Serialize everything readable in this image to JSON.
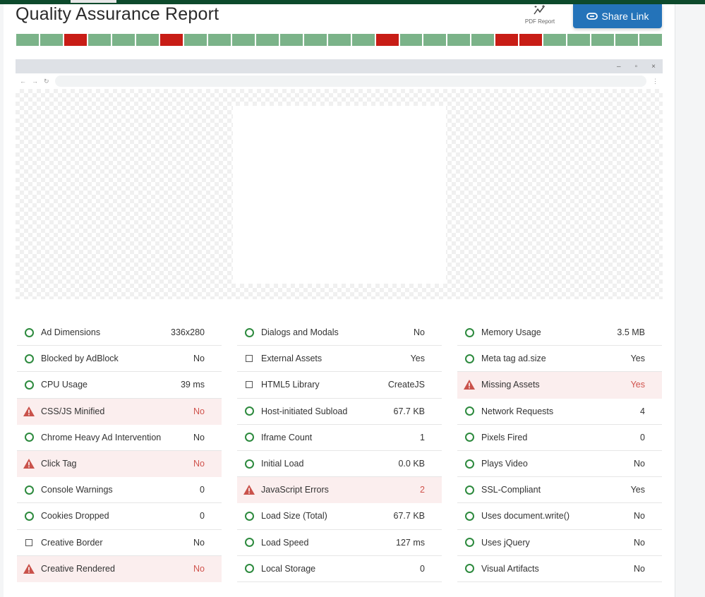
{
  "header": {
    "title": "Quality Assurance Report",
    "pdf_label": "PDF Report",
    "share_label": "Share Link"
  },
  "colors": {
    "pass": "#7bb389",
    "fail": "#c81d16",
    "accent": "#2473b9"
  },
  "status_segments": [
    "pass",
    "pass",
    "fail",
    "pass",
    "pass",
    "pass",
    "fail",
    "pass",
    "pass",
    "pass",
    "pass",
    "pass",
    "pass",
    "pass",
    "pass",
    "fail",
    "pass",
    "pass",
    "pass",
    "pass",
    "fail",
    "fail",
    "pass",
    "pass",
    "pass",
    "pass",
    "pass"
  ],
  "browser": {
    "minimize": "–",
    "restore": "▫",
    "close": "×",
    "back": "←",
    "forward": "→",
    "reload": "↻",
    "menu": "⋮"
  },
  "columns": [
    [
      {
        "label": "Ad Dimensions",
        "value": "336x280",
        "status": "pass"
      },
      {
        "label": "Blocked by AdBlock",
        "value": "No",
        "status": "pass"
      },
      {
        "label": "CPU Usage",
        "value": "39 ms",
        "status": "pass"
      },
      {
        "label": "CSS/JS Minified",
        "value": "No",
        "status": "warn"
      },
      {
        "label": "Chrome Heavy Ad Intervention",
        "value": "No",
        "status": "pass"
      },
      {
        "label": "Click Tag",
        "value": "No",
        "status": "warn"
      },
      {
        "label": "Console Warnings",
        "value": "0",
        "status": "pass"
      },
      {
        "label": "Cookies Dropped",
        "value": "0",
        "status": "pass"
      },
      {
        "label": "Creative Border",
        "value": "No",
        "status": "info"
      },
      {
        "label": "Creative Rendered",
        "value": "No",
        "status": "warn"
      }
    ],
    [
      {
        "label": "Dialogs and Modals",
        "value": "No",
        "status": "pass"
      },
      {
        "label": "External Assets",
        "value": "Yes",
        "status": "info"
      },
      {
        "label": "HTML5 Library",
        "value": "CreateJS",
        "status": "info"
      },
      {
        "label": "Host-initiated Subload",
        "value": "67.7 KB",
        "status": "pass"
      },
      {
        "label": "Iframe Count",
        "value": "1",
        "status": "pass"
      },
      {
        "label": "Initial Load",
        "value": "0.0 KB",
        "status": "pass"
      },
      {
        "label": "JavaScript Errors",
        "value": "2",
        "status": "warn"
      },
      {
        "label": "Load Size (Total)",
        "value": "67.7 KB",
        "status": "pass"
      },
      {
        "label": "Load Speed",
        "value": "127 ms",
        "status": "pass"
      },
      {
        "label": "Local Storage",
        "value": "0",
        "status": "pass"
      }
    ],
    [
      {
        "label": "Memory Usage",
        "value": "3.5 MB",
        "status": "pass"
      },
      {
        "label": "Meta tag ad.size",
        "value": "Yes",
        "status": "pass"
      },
      {
        "label": "Missing Assets",
        "value": "Yes",
        "status": "warn"
      },
      {
        "label": "Network Requests",
        "value": "4",
        "status": "pass"
      },
      {
        "label": "Pixels Fired",
        "value": "0",
        "status": "pass"
      },
      {
        "label": "Plays Video",
        "value": "No",
        "status": "pass"
      },
      {
        "label": "SSL-Compliant",
        "value": "Yes",
        "status": "pass"
      },
      {
        "label": "Uses document.write()",
        "value": "No",
        "status": "pass"
      },
      {
        "label": "Uses jQuery",
        "value": "No",
        "status": "pass"
      },
      {
        "label": "Visual Artifacts",
        "value": "No",
        "status": "pass"
      }
    ]
  ]
}
